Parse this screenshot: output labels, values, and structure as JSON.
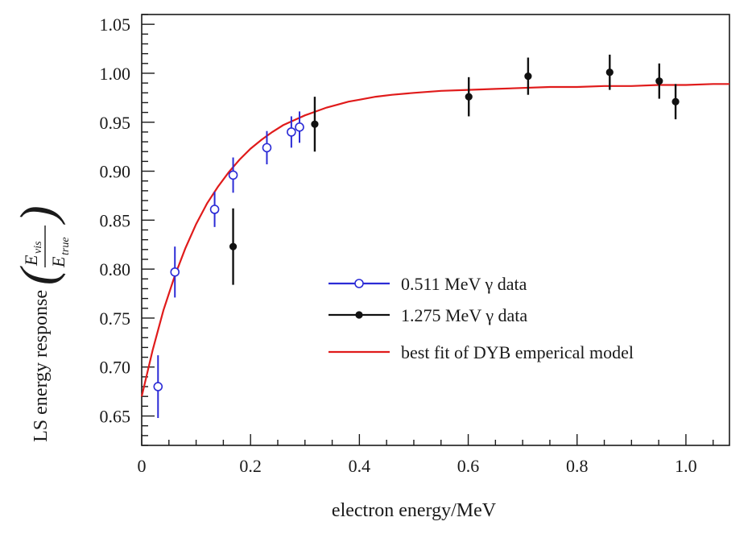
{
  "chart_data": {
    "type": "scatter",
    "xlabel": "electron energy/MeV",
    "ylabel": "LS energy response",
    "ylabel_fraction": {
      "numerator": "E",
      "numerator_sub": "vis",
      "denominator": "E",
      "denominator_sub": "true"
    },
    "xlim": [
      0,
      1.08
    ],
    "ylim": [
      0.62,
      1.06
    ],
    "x_ticks": [
      "0",
      "0.2",
      "0.4",
      "0.6",
      "0.8",
      "1.0"
    ],
    "x_tick_values": [
      0,
      0.2,
      0.4,
      0.6,
      0.8,
      1.0
    ],
    "y_ticks": [
      "0.65",
      "0.70",
      "0.75",
      "0.80",
      "0.85",
      "0.90",
      "0.95",
      "1.00",
      "1.05"
    ],
    "y_tick_values": [
      0.65,
      0.7,
      0.75,
      0.8,
      0.85,
      0.9,
      0.95,
      1.0,
      1.05
    ],
    "grid": false,
    "legend_position": "bottom-right",
    "series": [
      {
        "name": "0.511 MeV γ data",
        "color": "#2b2bd6",
        "marker": "open-circle",
        "points": [
          {
            "x": 0.03,
            "y": 0.68,
            "err": 0.032
          },
          {
            "x": 0.061,
            "y": 0.797,
            "err": 0.026
          },
          {
            "x": 0.134,
            "y": 0.861,
            "err": 0.018
          },
          {
            "x": 0.168,
            "y": 0.896,
            "err": 0.018
          },
          {
            "x": 0.23,
            "y": 0.924,
            "err": 0.017
          },
          {
            "x": 0.275,
            "y": 0.94,
            "err": 0.016
          },
          {
            "x": 0.29,
            "y": 0.945,
            "err": 0.016
          }
        ]
      },
      {
        "name": "1.275 MeV γ data",
        "color": "#111111",
        "marker": "filled-circle",
        "points": [
          {
            "x": 0.168,
            "y": 0.823,
            "err": 0.039
          },
          {
            "x": 0.318,
            "y": 0.948,
            "err": 0.028
          },
          {
            "x": 0.601,
            "y": 0.976,
            "err": 0.02
          },
          {
            "x": 0.71,
            "y": 0.997,
            "err": 0.019
          },
          {
            "x": 0.86,
            "y": 1.001,
            "err": 0.018
          },
          {
            "x": 0.951,
            "y": 0.992,
            "err": 0.018
          },
          {
            "x": 0.981,
            "y": 0.971,
            "err": 0.018
          }
        ]
      },
      {
        "name": "best fit of DYB emperical model",
        "color": "#e01b1b",
        "type": "line",
        "x": [
          0.0,
          0.02,
          0.04,
          0.06,
          0.08,
          0.1,
          0.12,
          0.14,
          0.16,
          0.18,
          0.2,
          0.22,
          0.24,
          0.26,
          0.28,
          0.3,
          0.32,
          0.34,
          0.36,
          0.38,
          0.4,
          0.43,
          0.46,
          0.5,
          0.55,
          0.6,
          0.65,
          0.7,
          0.75,
          0.8,
          0.85,
          0.9,
          0.95,
          1.0,
          1.05,
          1.08
        ],
        "y": [
          0.67,
          0.717,
          0.758,
          0.792,
          0.821,
          0.846,
          0.867,
          0.884,
          0.899,
          0.912,
          0.923,
          0.932,
          0.94,
          0.947,
          0.952,
          0.957,
          0.961,
          0.965,
          0.968,
          0.971,
          0.973,
          0.976,
          0.978,
          0.98,
          0.982,
          0.983,
          0.984,
          0.985,
          0.986,
          0.986,
          0.987,
          0.987,
          0.988,
          0.988,
          0.989,
          0.989
        ]
      }
    ]
  }
}
